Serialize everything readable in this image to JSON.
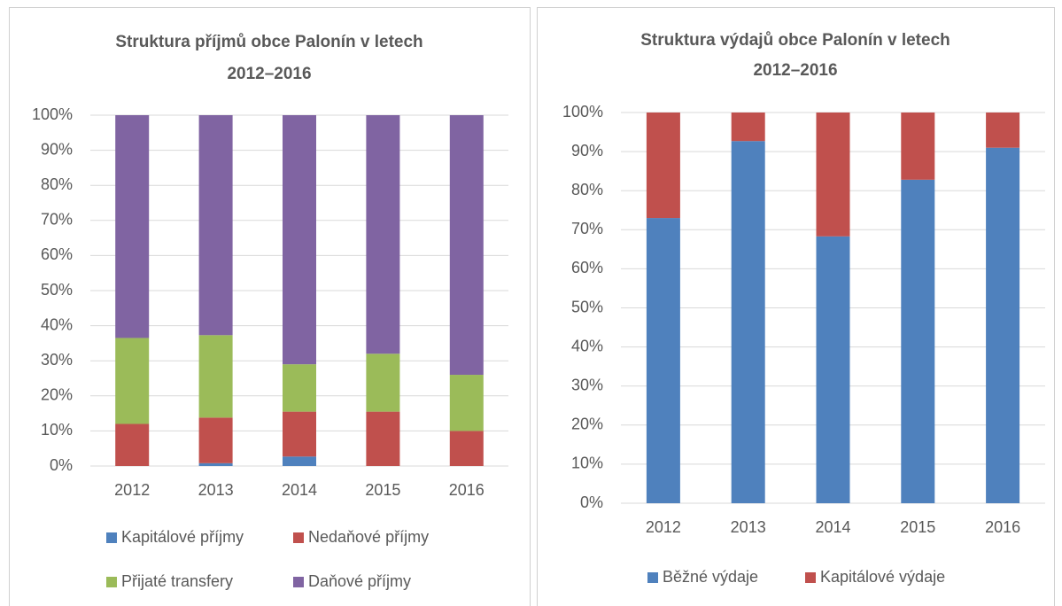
{
  "chart_data": [
    {
      "type": "stacked_bar",
      "title": "Struktura příjmů obce Palonín v letech 2012–2016",
      "categories": [
        "2012",
        "2013",
        "2014",
        "2015",
        "2016"
      ],
      "series": [
        {
          "name": "Kapitálové příjmy",
          "color": "#4f81bd",
          "values": [
            0,
            0.8,
            2.7,
            0,
            0
          ]
        },
        {
          "name": "Nedaňové příjmy",
          "color": "#c0504d",
          "values": [
            12,
            13,
            12.8,
            15.5,
            10
          ]
        },
        {
          "name": "Přijaté transfery",
          "color": "#9bbb59",
          "values": [
            24.5,
            23.5,
            13.5,
            16.5,
            16
          ]
        },
        {
          "name": "Daňové příjmy",
          "color": "#8064a2",
          "values": [
            63.5,
            62.7,
            71,
            68,
            74
          ]
        }
      ],
      "ylim": [
        0,
        100
      ],
      "yticks": [
        {
          "value": 0,
          "label": "0%"
        },
        {
          "value": 10,
          "label": "10%"
        },
        {
          "value": 20,
          "label": "20%"
        },
        {
          "value": 30,
          "label": "30%"
        },
        {
          "value": 40,
          "label": "40%"
        },
        {
          "value": 50,
          "label": "50%"
        },
        {
          "value": 60,
          "label": "60%"
        },
        {
          "value": 70,
          "label": "70%"
        },
        {
          "value": 80,
          "label": "80%"
        },
        {
          "value": 90,
          "label": "90%"
        },
        {
          "value": 100,
          "label": "100%"
        }
      ],
      "grid": true,
      "legend": "bottom"
    },
    {
      "type": "stacked_bar",
      "title": "Struktura výdajů obce Palonín v letech 2012–2016",
      "categories": [
        "2012",
        "2013",
        "2014",
        "2015",
        "2016"
      ],
      "series": [
        {
          "name": "Běžné výdaje",
          "color": "#4f81bd",
          "values": [
            73,
            92.7,
            68.3,
            82.8,
            91
          ]
        },
        {
          "name": "Kapitálové výdaje",
          "color": "#c0504d",
          "values": [
            27,
            7.3,
            31.7,
            17.2,
            9
          ]
        }
      ],
      "ylim": [
        0,
        100
      ],
      "yticks": [
        {
          "value": 0,
          "label": "0%"
        },
        {
          "value": 10,
          "label": "10%"
        },
        {
          "value": 20,
          "label": "20%"
        },
        {
          "value": 30,
          "label": "30%"
        },
        {
          "value": 40,
          "label": "40%"
        },
        {
          "value": 50,
          "label": "50%"
        },
        {
          "value": 60,
          "label": "60%"
        },
        {
          "value": 70,
          "label": "70%"
        },
        {
          "value": 80,
          "label": "80%"
        },
        {
          "value": 90,
          "label": "90%"
        },
        {
          "value": 100,
          "label": "100%"
        }
      ],
      "grid": true,
      "legend": "bottom"
    }
  ]
}
